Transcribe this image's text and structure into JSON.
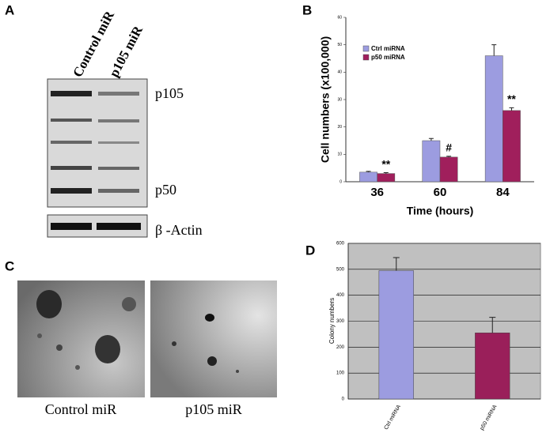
{
  "panel_a": {
    "label": "A",
    "lanes": [
      "Control miR",
      "p105 miR"
    ],
    "bands": [
      "p105",
      "p50",
      "β -Actin"
    ]
  },
  "panel_c": {
    "label": "C",
    "captions": [
      "Control miR",
      "p105 miR"
    ]
  },
  "chart_data": [
    {
      "type": "bar",
      "label": "B",
      "x_label": "Time (hours)",
      "y_label": "Cell numbers (x100,000)",
      "categories": [
        "36",
        "60",
        "84"
      ],
      "series": [
        {
          "name": "Ctrl miRNA",
          "color": "#9c9ce0",
          "values": [
            3.5,
            15,
            46
          ],
          "errors": [
            0.3,
            0.8,
            4
          ]
        },
        {
          "name": "p50 miRNA",
          "color": "#a01f5c",
          "values": [
            3,
            9,
            26
          ],
          "errors": [
            0.3,
            0.3,
            1
          ],
          "annotations": [
            "**",
            "#",
            "**"
          ]
        }
      ],
      "ylim": [
        0,
        60
      ],
      "yticks": [
        0,
        10,
        20,
        30,
        40,
        50,
        60
      ],
      "legend": "top-left",
      "grid": false
    },
    {
      "type": "bar",
      "label": "D",
      "y_label": "Colony numbers",
      "categories": [
        "Ctrl miRNA",
        "p50 miRNA"
      ],
      "values": [
        495,
        255
      ],
      "errors": [
        50,
        60
      ],
      "colors": [
        "#9c9ce0",
        "#9a1f5a"
      ],
      "ylim": [
        0,
        600
      ],
      "yticks": [
        0,
        100,
        200,
        300,
        400,
        500,
        600
      ],
      "grid": true
    }
  ]
}
